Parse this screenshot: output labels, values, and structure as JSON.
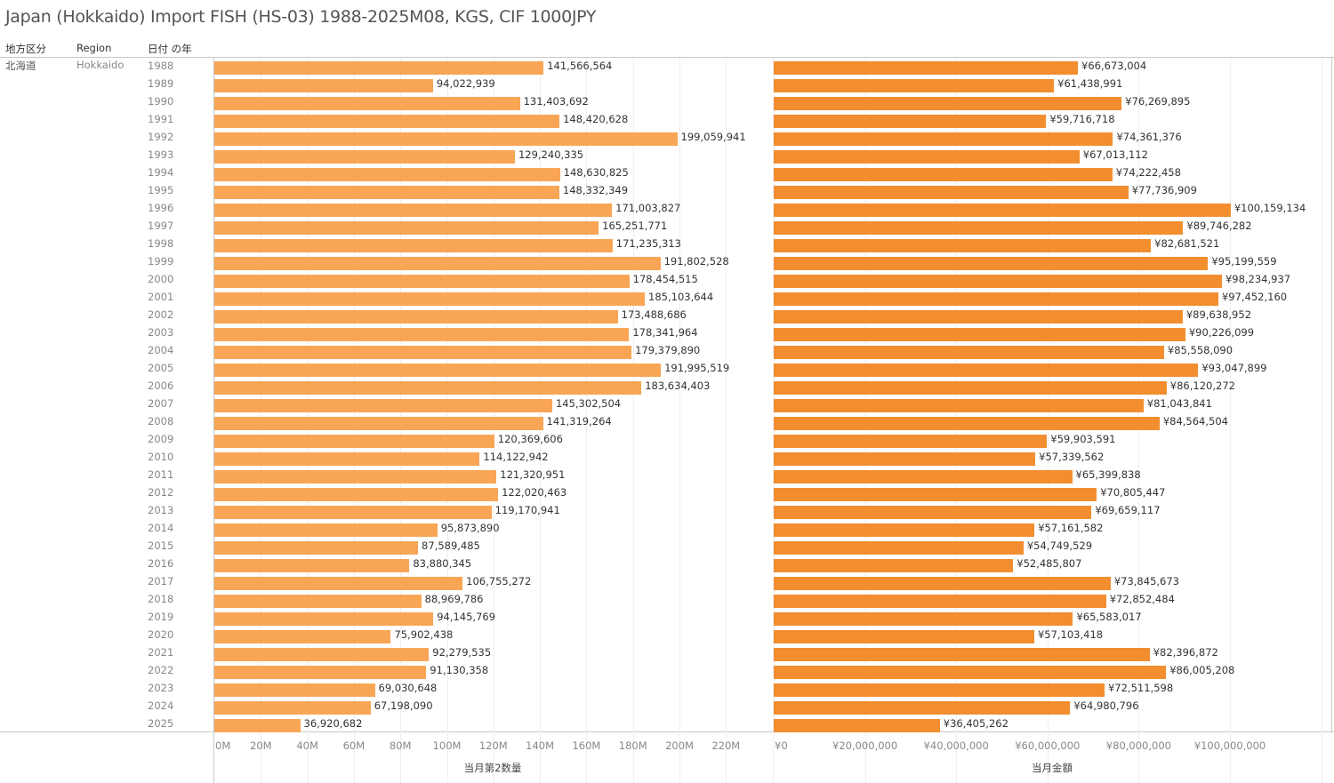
{
  "title": "Japan (Hokkaido) Import FISH (HS-03) 1988-2025M08, KGS, CIF 1000JPY",
  "headers": {
    "region_jp": "地方区分",
    "region_en": "Region",
    "year": "日付 の年"
  },
  "row_header": {
    "region_jp": "北海道",
    "region_en": "Hokkaido"
  },
  "colors": {
    "quantity_bar": "#f8a655",
    "amount_bar": "#f28e2f"
  },
  "chart_data": [
    {
      "type": "bar",
      "orientation": "horizontal",
      "title": "",
      "xlabel": "当月第2数量",
      "ylabel": "日付 の年",
      "xlim": [
        0,
        240000000
      ],
      "grid": true,
      "tick_values": [
        0,
        20000000,
        40000000,
        60000000,
        80000000,
        100000000,
        120000000,
        140000000,
        160000000,
        180000000,
        200000000,
        220000000
      ],
      "tick_labels": [
        "0M",
        "20M",
        "40M",
        "60M",
        "80M",
        "100M",
        "120M",
        "140M",
        "160M",
        "180M",
        "200M",
        "220M"
      ],
      "categories": [
        "1988",
        "1989",
        "1990",
        "1991",
        "1992",
        "1993",
        "1994",
        "1995",
        "1996",
        "1997",
        "1998",
        "1999",
        "2000",
        "2001",
        "2002",
        "2003",
        "2004",
        "2005",
        "2006",
        "2007",
        "2008",
        "2009",
        "2010",
        "2011",
        "2012",
        "2013",
        "2014",
        "2015",
        "2016",
        "2017",
        "2018",
        "2019",
        "2020",
        "2021",
        "2022",
        "2023",
        "2024",
        "2025"
      ],
      "values": [
        141566564,
        94022939,
        131403692,
        148420628,
        199059941,
        129240335,
        148630825,
        148332349,
        171003827,
        165251771,
        171235313,
        191802528,
        178454515,
        185103644,
        173488686,
        178341964,
        179379890,
        191995519,
        183634403,
        145302504,
        141319264,
        120369606,
        114122942,
        121320951,
        122020463,
        119170941,
        95873890,
        87589485,
        83880345,
        106755272,
        88969786,
        94145769,
        75902438,
        92279535,
        91130358,
        69030648,
        67198090,
        36920682
      ],
      "labels": [
        "141,566,564",
        "94,022,939",
        "131,403,692",
        "148,420,628",
        "199,059,941",
        "129,240,335",
        "148,630,825",
        "148,332,349",
        "171,003,827",
        "165,251,771",
        "171,235,313",
        "191,802,528",
        "178,454,515",
        "185,103,644",
        "173,488,686",
        "178,341,964",
        "179,379,890",
        "191,995,519",
        "183,634,403",
        "145,302,504",
        "141,319,264",
        "120,369,606",
        "114,122,942",
        "121,320,951",
        "122,020,463",
        "119,170,941",
        "95,873,890",
        "87,589,485",
        "83,880,345",
        "106,755,272",
        "88,969,786",
        "94,145,769",
        "75,902,438",
        "92,279,535",
        "91,130,358",
        "69,030,648",
        "67,198,090",
        "36,920,682"
      ]
    },
    {
      "type": "bar",
      "orientation": "horizontal",
      "title": "",
      "xlabel": "当月金額",
      "ylabel": "日付 の年",
      "xlim": [
        0,
        120000000
      ],
      "grid": true,
      "tick_values": [
        0,
        20000000,
        40000000,
        60000000,
        80000000,
        100000000
      ],
      "tick_labels": [
        "¥0",
        "¥20,000,000",
        "¥40,000,000",
        "¥60,000,000",
        "¥80,000,000",
        "¥100,000,000"
      ],
      "categories": [
        "1988",
        "1989",
        "1990",
        "1991",
        "1992",
        "1993",
        "1994",
        "1995",
        "1996",
        "1997",
        "1998",
        "1999",
        "2000",
        "2001",
        "2002",
        "2003",
        "2004",
        "2005",
        "2006",
        "2007",
        "2008",
        "2009",
        "2010",
        "2011",
        "2012",
        "2013",
        "2014",
        "2015",
        "2016",
        "2017",
        "2018",
        "2019",
        "2020",
        "2021",
        "2022",
        "2023",
        "2024",
        "2025"
      ],
      "values": [
        66673004,
        61438991,
        76269895,
        59716718,
        74361376,
        67013112,
        74222458,
        77736909,
        100159134,
        89746282,
        82681521,
        95199559,
        98234937,
        97452160,
        89638952,
        90226099,
        85558090,
        93047899,
        86120272,
        81043841,
        84564504,
        59903591,
        57339562,
        65399838,
        70805447,
        69659117,
        57161582,
        54749529,
        52485807,
        73845673,
        72852484,
        65583017,
        57103418,
        82396872,
        86005208,
        72511598,
        64980796,
        36405262
      ],
      "labels": [
        "¥66,673,004",
        "¥61,438,991",
        "¥76,269,895",
        "¥59,716,718",
        "¥74,361,376",
        "¥67,013,112",
        "¥74,222,458",
        "¥77,736,909",
        "¥100,159,134",
        "¥89,746,282",
        "¥82,681,521",
        "¥95,199,559",
        "¥98,234,937",
        "¥97,452,160",
        "¥89,638,952",
        "¥90,226,099",
        "¥85,558,090",
        "¥93,047,899",
        "¥86,120,272",
        "¥81,043,841",
        "¥84,564,504",
        "¥59,903,591",
        "¥57,339,562",
        "¥65,399,838",
        "¥70,805,447",
        "¥69,659,117",
        "¥57,161,582",
        "¥54,749,529",
        "¥52,485,807",
        "¥73,845,673",
        "¥72,852,484",
        "¥65,583,017",
        "¥57,103,418",
        "¥82,396,872",
        "¥86,005,208",
        "¥72,511,598",
        "¥64,980,796",
        "¥36,405,262"
      ]
    }
  ]
}
